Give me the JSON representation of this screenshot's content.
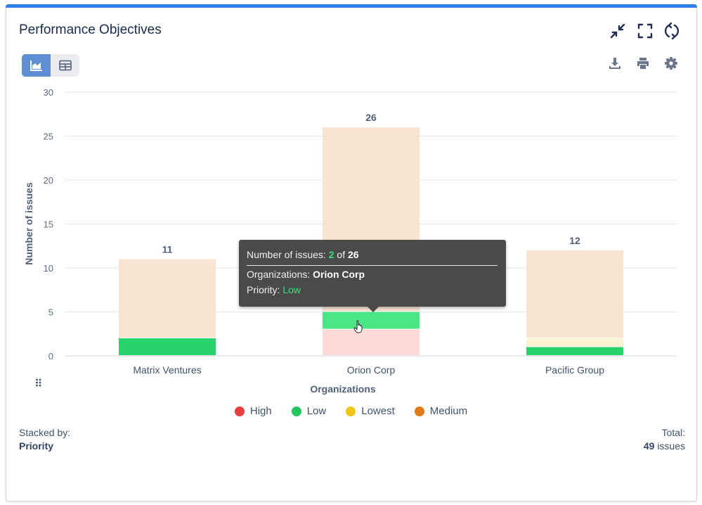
{
  "card": {
    "title": "Performance Objectives"
  },
  "header_icons": [
    "collapse-icon",
    "fullscreen-icon",
    "refresh-icon"
  ],
  "toolbar_icons": [
    "download-icon",
    "print-icon",
    "settings-icon"
  ],
  "view_toggle": {
    "options": [
      "chart-view-icon",
      "table-view-icon"
    ],
    "selected": "chart-view-icon"
  },
  "chart_data": {
    "type": "bar",
    "stacked": true,
    "categories": [
      "Matrix Ventures",
      "Orion Corp",
      "Pacific Group"
    ],
    "series": [
      {
        "name": "High",
        "values": [
          0,
          3,
          0
        ],
        "color": "#fcdad7"
      },
      {
        "name": "Low",
        "values": [
          2,
          2,
          1
        ],
        "color": "#2ad26e"
      },
      {
        "name": "Lowest",
        "values": [
          0,
          0,
          1
        ],
        "color": "#fbf3cf"
      },
      {
        "name": "Medium",
        "values": [
          9,
          21,
          10
        ],
        "color": "#f9e4d2"
      }
    ],
    "totals": [
      "11",
      "26",
      "12"
    ],
    "ylabel": "Number of issues",
    "xlabel": "Organizations",
    "ylim": [
      0,
      30
    ],
    "yticks": [
      "0",
      "5",
      "10",
      "15",
      "20",
      "25",
      "30"
    ],
    "grid": true,
    "legend_position": "bottom",
    "highlighted": {
      "category_index": 1,
      "series_index": 1,
      "color": "#4ae685"
    }
  },
  "legend": [
    {
      "label": "High",
      "color": "#e53e3e"
    },
    {
      "label": "Low",
      "color": "#22c55e"
    },
    {
      "label": "Lowest",
      "color": "#f2c617"
    },
    {
      "label": "Medium",
      "color": "#e07b1a"
    }
  ],
  "tooltip": {
    "metric_label": "Number of issues:",
    "value": "2",
    "of_text": "of",
    "total": "26",
    "org_label": "Organizations:",
    "org_value": "Orion Corp",
    "priority_label": "Priority:",
    "priority_value": "Low"
  },
  "footer": {
    "stacked_label": "Stacked by:",
    "stacked_value": "Priority",
    "total_label": "Total:",
    "total_count": "49",
    "total_unit": "issues"
  }
}
